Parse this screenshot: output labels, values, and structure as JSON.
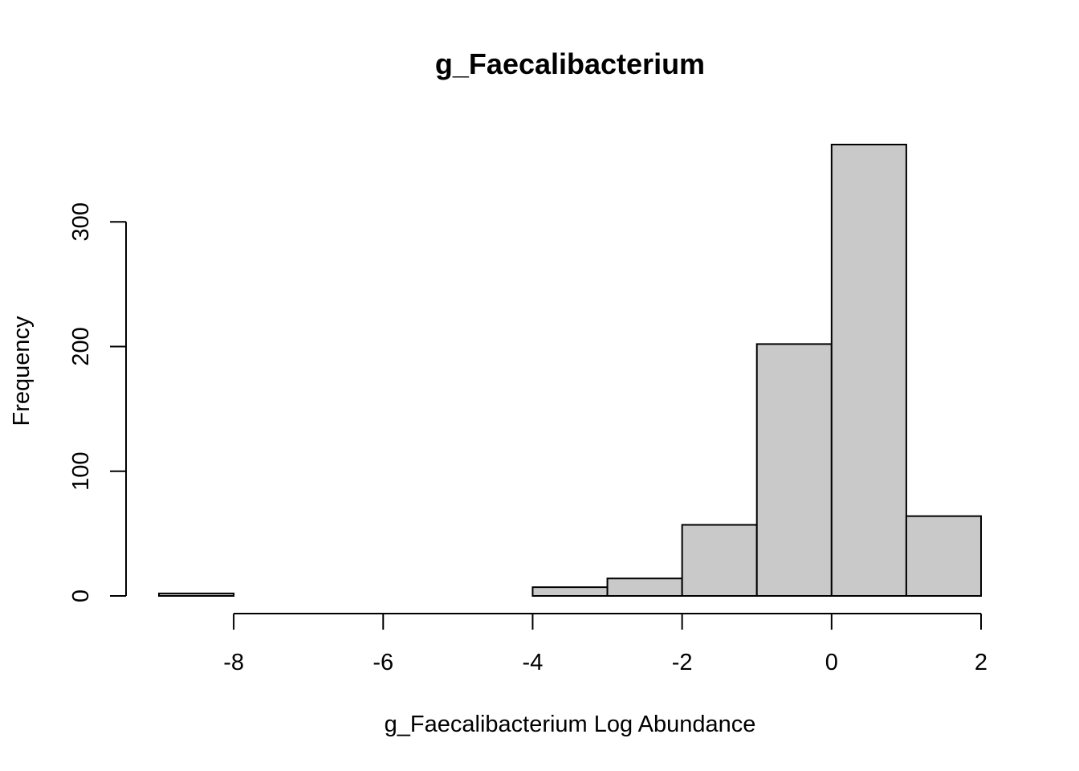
{
  "chart_data": {
    "type": "bar",
    "title": "g_Faecalibacterium",
    "xlabel": "g_Faecalibacterium Log Abundance",
    "ylabel": "Frequency",
    "bin_edges": [
      -9,
      -8,
      -7,
      -6,
      -5,
      -4,
      -3,
      -2,
      -1,
      0,
      1,
      2
    ],
    "values": [
      2,
      0,
      0,
      0,
      0,
      7,
      14,
      57,
      202,
      362,
      64
    ],
    "xlim": [
      -9,
      2
    ],
    "ylim": [
      0,
      362
    ],
    "x_ticks": [
      -8,
      -6,
      -4,
      -2,
      0,
      2
    ],
    "x_tick_labels": [
      "-8",
      "-6",
      "-4",
      "-2",
      "0",
      "2"
    ],
    "y_ticks": [
      0,
      100,
      200,
      300
    ],
    "y_tick_labels": [
      "0",
      "100",
      "200",
      "300"
    ],
    "bar_fill": "#c9c9c9",
    "bar_stroke": "#000000",
    "grid": false,
    "legend": "none"
  }
}
